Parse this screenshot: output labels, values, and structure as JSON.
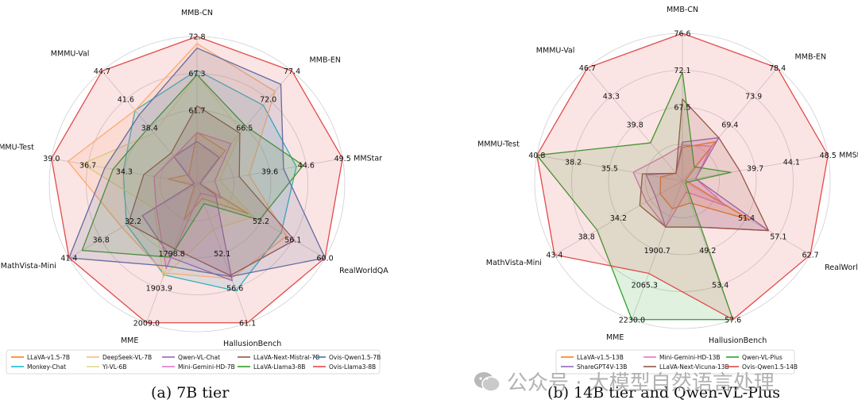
{
  "chart_data": [
    {
      "type": "radar",
      "axes": [
        "MMB-CN",
        "MMB-EN",
        "MMStar",
        "RealWorldQA",
        "HallusionBench",
        "MME",
        "MathVista-Mini",
        "MMMU-Test",
        "MMMU-Val"
      ],
      "ring_labels": [
        [
          "61.7",
          "67.3",
          "72.8"
        ],
        [
          "66.5",
          "72.0",
          "77.4"
        ],
        [
          "39.6",
          "44.6",
          "49.5"
        ],
        [
          "52.2",
          "56.1",
          "60.0"
        ],
        [
          "52.1",
          "56.6",
          "61.1"
        ],
        [
          "1798.8",
          "1903.9",
          "2009.0"
        ],
        [
          "32.2",
          "36.8",
          "41.4"
        ],
        [
          "34.3",
          "36.7",
          "39.0"
        ],
        [
          "38.4",
          "41.6",
          "44.7"
        ]
      ],
      "range_min": [
        56.2,
        61.2,
        34.7,
        48.3,
        47.6,
        1693.7,
        27.6,
        31.9,
        35.2
      ],
      "range_max": [
        72.8,
        77.4,
        49.5,
        60.0,
        61.1,
        2009.0,
        41.4,
        39.0,
        44.7
      ],
      "series": [
        {
          "name": "LLaVA-v1.5-7B",
          "color": "#ff7f0e",
          "values": [
            62.0,
            66.0,
            33.0,
            53.0,
            49.0,
            1775,
            26.5,
            33.3,
            36.0
          ]
        },
        {
          "name": "Monkey-Chat",
          "color": "#17becf",
          "values": [
            69.0,
            72.5,
            44.8,
            56.0,
            58.0,
            1900,
            35.2,
            35.5,
            41.4
          ]
        },
        {
          "name": "DeepSeek-VL-7B",
          "color": "#ffbb78",
          "values": [
            72.0,
            74.5,
            40.0,
            56.5,
            56.8,
            1896,
            35.7,
            38.2,
            41.4
          ]
        },
        {
          "name": "Yi-VL-6B",
          "color": "#dbdb8d",
          "values": [
            68.5,
            68.8,
            37.0,
            53.5,
            52.0,
            1905,
            32.2,
            37.5,
            39.5
          ]
        },
        {
          "name": "Qwen-VL-Chat",
          "color": "#9467bd",
          "values": [
            61.0,
            65.0,
            35.0,
            50.0,
            57.0,
            1860,
            33.5,
            31.9,
            37.5
          ]
        },
        {
          "name": "Mini-Gemini-HD-7B",
          "color": "#e377c2",
          "values": [
            62.0,
            67.0,
            36.5,
            50.5,
            48.5,
            1886,
            32.0,
            34.0,
            37.5
          ]
        },
        {
          "name": "LLaVA-Next-Mistral-7B",
          "color": "#8c564b",
          "values": [
            65.0,
            68.5,
            39.0,
            57.2,
            56.5,
            1840,
            35.0,
            34.5,
            37.8
          ]
        },
        {
          "name": "LLaVA-Llama3-8B",
          "color": "#2ca02c",
          "values": [
            68.5,
            69.5,
            45.5,
            54.0,
            49.5,
            1860,
            40.0,
            36.0,
            40.0
          ]
        },
        {
          "name": "Ovis-Qwen1.5-7B",
          "color": "#4c72b0",
          "values": [
            71.5,
            75.5,
            43.5,
            60.0,
            56.6,
            1880,
            41.4,
            36.4,
            41.0
          ]
        },
        {
          "name": "Ovis-Llama3-8B",
          "color": "#e24a4a",
          "values": [
            72.8,
            77.4,
            49.5,
            60.0,
            61.1,
            2009.0,
            41.4,
            39.0,
            44.7
          ]
        }
      ],
      "caption": "(a) 7B tier"
    },
    {
      "type": "radar",
      "axes": [
        "MMB-CN",
        "MMB-EN",
        "MMStar",
        "RealWorldQA",
        "HallusionBench",
        "MME",
        "MathVista-Mini",
        "MMMU-Test",
        "MMMU-Val"
      ],
      "ring_labels": [
        [
          "67.5",
          "72.1",
          "76.6"
        ],
        [
          "69.4",
          "73.9",
          "78.4"
        ],
        [
          "39.7",
          "44.1",
          "48.5"
        ],
        [
          "51.4",
          "57.1",
          "62.7"
        ],
        [
          "49.2",
          "53.4",
          "57.6"
        ],
        [
          "1900.7",
          "2065.3",
          "2230.0"
        ],
        [
          "34.2",
          "38.8",
          "43.4"
        ],
        [
          "35.5",
          "38.2",
          "40.8"
        ],
        [
          "39.8",
          "43.3",
          "46.7"
        ]
      ],
      "range_min": [
        62.9,
        64.8,
        35.3,
        45.6,
        45.0,
        1736.0,
        29.6,
        32.8,
        36.3
      ],
      "range_max": [
        76.6,
        78.4,
        48.5,
        62.7,
        57.6,
        2230.0,
        43.4,
        40.8,
        46.7
      ],
      "series": [
        {
          "name": "LLaVA-v1.5-13B",
          "color": "#ff7f0e",
          "values": [
            66.0,
            69.5,
            35.3,
            54.6,
            47.0,
            1835,
            32.0,
            34.0,
            37.0
          ]
        },
        {
          "name": "ShareGPT4V-13B",
          "color": "#9467bd",
          "values": [
            66.5,
            70.0,
            36.5,
            57.1,
            49.2,
            1900.7,
            32.5,
            34.8,
            37.0
          ]
        },
        {
          "name": "Mini-Gemini-HD-13B",
          "color": "#e377c2",
          "values": [
            66.2,
            69.0,
            36.5,
            51.4,
            46.0,
            1900.7,
            33.5,
            35.5,
            38.5
          ]
        },
        {
          "name": "LLaVA-Next-Vicuna-13B",
          "color": "#8c564b",
          "values": [
            70.5,
            70.0,
            40.5,
            57.1,
            49.2,
            1900,
            34.2,
            35.0,
            37.0
          ]
        },
        {
          "name": "Qwen-VL-Plus",
          "color": "#2ca02c",
          "values": [
            73.0,
            66.5,
            39.7,
            46.0,
            57.6,
            2230.0,
            38.8,
            40.8,
            39.8
          ]
        },
        {
          "name": "Ovis-Qwen1.5-14B",
          "color": "#e24a4a",
          "values": [
            76.6,
            78.4,
            48.5,
            62.7,
            57.6,
            2065.3,
            43.4,
            40.8,
            46.7
          ]
        }
      ],
      "caption": "(b) 14B tier and Qwen-VL-Plus"
    }
  ],
  "watermark": "公众号 · 大模型自然语言处理"
}
